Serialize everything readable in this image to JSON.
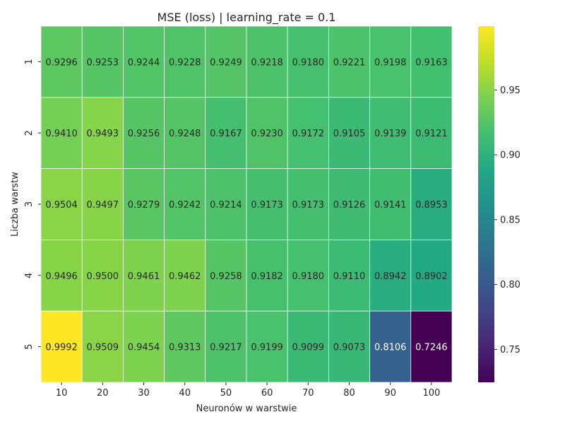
{
  "chart_data": {
    "type": "heatmap",
    "title": "MSE (loss) | learning_rate = 0.1",
    "xlabel": "Neuronów w warstwie",
    "ylabel": "Liczba warstw",
    "x_categories": [
      "10",
      "20",
      "30",
      "40",
      "50",
      "60",
      "70",
      "80",
      "90",
      "100"
    ],
    "y_categories": [
      "1",
      "2",
      "3",
      "4",
      "5"
    ],
    "values": [
      [
        0.9296,
        0.9253,
        0.9244,
        0.9228,
        0.9249,
        0.9218,
        0.918,
        0.9221,
        0.9198,
        0.9163
      ],
      [
        0.941,
        0.9493,
        0.9256,
        0.9248,
        0.9167,
        0.923,
        0.9172,
        0.9105,
        0.9139,
        0.9121
      ],
      [
        0.9504,
        0.9497,
        0.9279,
        0.9242,
        0.9214,
        0.9173,
        0.9173,
        0.9126,
        0.9141,
        0.8953
      ],
      [
        0.9496,
        0.95,
        0.9461,
        0.9462,
        0.9258,
        0.9182,
        0.918,
        0.911,
        0.8942,
        0.8902
      ],
      [
        0.9992,
        0.9509,
        0.9454,
        0.9313,
        0.9217,
        0.9199,
        0.9099,
        0.9073,
        0.8106,
        0.7246
      ]
    ],
    "labels": [
      [
        "0.9296",
        "0.9253",
        "0.9244",
        "0.9228",
        "0.9249",
        "0.9218",
        "0.9180",
        "0.9221",
        "0.9198",
        "0.9163"
      ],
      [
        "0.9410",
        "0.9493",
        "0.9256",
        "0.9248",
        "0.9167",
        "0.9230",
        "0.9172",
        "0.9105",
        "0.9139",
        "0.9121"
      ],
      [
        "0.9504",
        "0.9497",
        "0.9279",
        "0.9242",
        "0.9214",
        "0.9173",
        "0.9173",
        "0.9126",
        "0.9141",
        "0.8953"
      ],
      [
        "0.9496",
        "0.9500",
        "0.9461",
        "0.9462",
        "0.9258",
        "0.9182",
        "0.9180",
        "0.9110",
        "0.8942",
        "0.8902"
      ],
      [
        "0.9992",
        "0.9509",
        "0.9454",
        "0.9313",
        "0.9217",
        "0.9199",
        "0.9099",
        "0.9073",
        "0.8106",
        "0.7246"
      ]
    ],
    "colormap": "viridis",
    "vmin": 0.7246,
    "vmax": 0.9992,
    "colorbar_ticks": [
      0.75,
      0.8,
      0.85,
      0.9,
      0.95
    ],
    "colorbar_tick_labels": [
      "0.75",
      "0.80",
      "0.85",
      "0.90",
      "0.95"
    ],
    "cell_border_color": "#ffffff",
    "text_dark_color": "#262626",
    "text_light_color": "#ffffff"
  }
}
